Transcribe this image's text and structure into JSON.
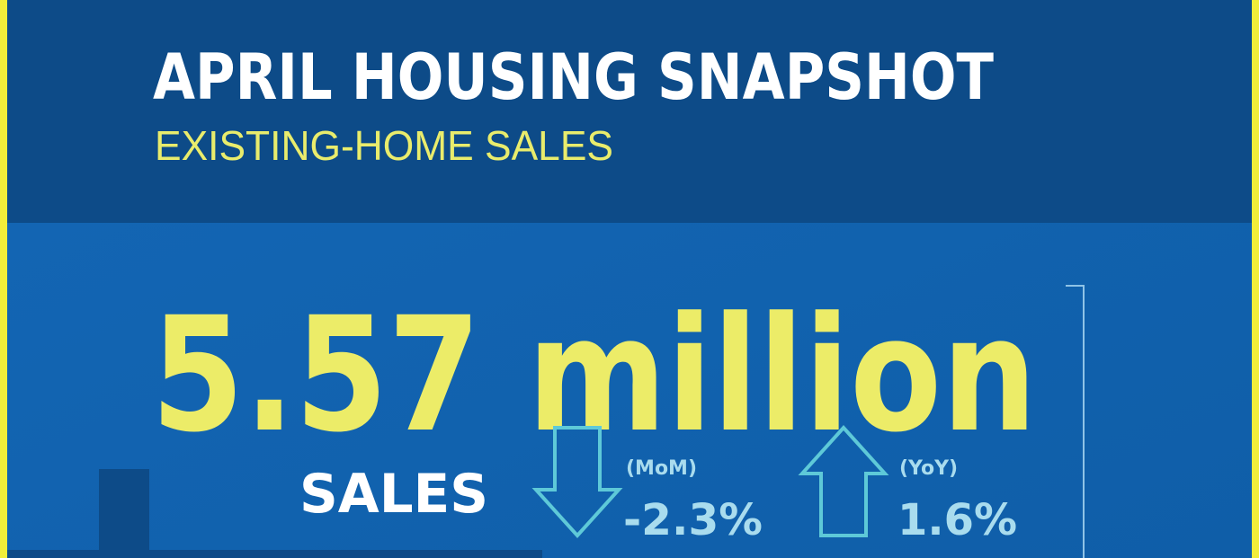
{
  "header": {
    "title": "APRIL HOUSING SNAPSHOT",
    "subtitle": "EXISTING-HOME SALES"
  },
  "headline": {
    "figure": "5.57 million",
    "label": "SALES"
  },
  "changes": [
    {
      "period": "(MoM)",
      "value": "-2.3%"
    },
    {
      "period": "(YoY)",
      "value": "1.6%"
    }
  ]
}
